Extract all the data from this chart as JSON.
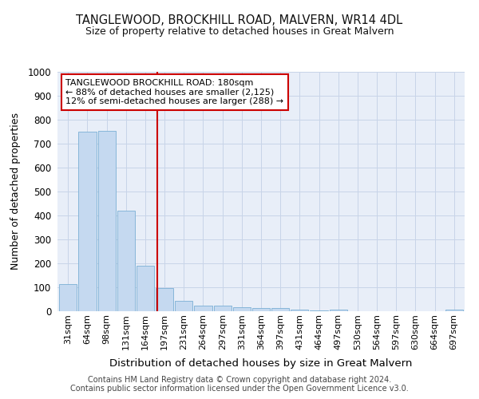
{
  "title": "TANGLEWOOD, BROCKHILL ROAD, MALVERN, WR14 4DL",
  "subtitle": "Size of property relative to detached houses in Great Malvern",
  "xlabel": "Distribution of detached houses by size in Great Malvern",
  "ylabel": "Number of detached properties",
  "footer1": "Contains HM Land Registry data © Crown copyright and database right 2024.",
  "footer2": "Contains public sector information licensed under the Open Government Licence v3.0.",
  "categories": [
    "31sqm",
    "64sqm",
    "98sqm",
    "131sqm",
    "164sqm",
    "197sqm",
    "231sqm",
    "264sqm",
    "297sqm",
    "331sqm",
    "364sqm",
    "397sqm",
    "431sqm",
    "464sqm",
    "497sqm",
    "530sqm",
    "564sqm",
    "597sqm",
    "630sqm",
    "664sqm",
    "697sqm"
  ],
  "values": [
    115,
    750,
    755,
    420,
    190,
    97,
    45,
    22,
    22,
    18,
    15,
    15,
    8,
    5,
    8,
    0,
    0,
    0,
    0,
    0,
    8
  ],
  "bar_color": "#c5d9f0",
  "bar_edgecolor": "#7bafd4",
  "grid_color": "#c8d4e8",
  "bg_color": "#e8eef8",
  "vline_x": 4.62,
  "vline_color": "#cc0000",
  "annotation_line1": "TANGLEWOOD BROCKHILL ROAD: 180sqm",
  "annotation_line2": "← 88% of detached houses are smaller (2,125)",
  "annotation_line3": "12% of semi-detached houses are larger (288) →",
  "annotation_box_color": "#ffffff",
  "annotation_box_edgecolor": "#cc0000",
  "ylim": [
    0,
    1000
  ],
  "yticks": [
    0,
    100,
    200,
    300,
    400,
    500,
    600,
    700,
    800,
    900,
    1000
  ]
}
